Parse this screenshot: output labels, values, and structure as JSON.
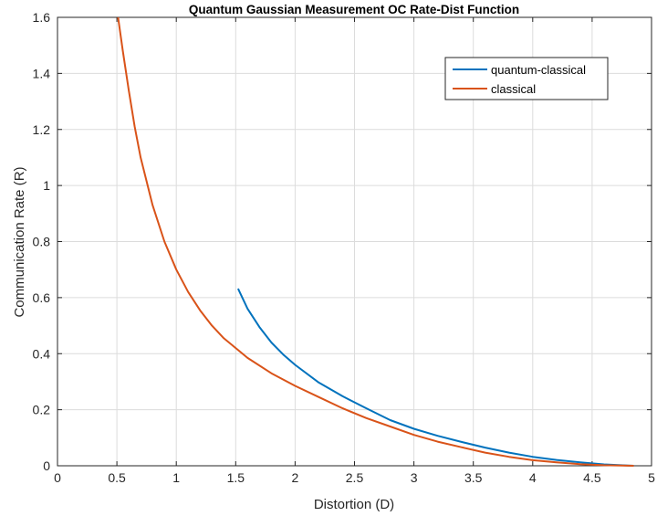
{
  "chart_data": {
    "type": "line",
    "title": "Quantum Gaussian Measurement OC Rate-Dist Function",
    "xlabel": "Distortion (D)",
    "ylabel": "Communication Rate (R)",
    "xlim": [
      0,
      5
    ],
    "ylim": [
      0,
      1.6
    ],
    "xticks": [
      0,
      0.5,
      1,
      1.5,
      2,
      2.5,
      3,
      3.5,
      4,
      4.5,
      5
    ],
    "xtick_labels": [
      "0",
      "0.5",
      "1",
      "1.5",
      "2",
      "2.5",
      "3",
      "3.5",
      "4",
      "4.5",
      "5"
    ],
    "yticks": [
      0,
      0.2,
      0.4,
      0.6,
      0.8,
      1,
      1.2,
      1.4,
      1.6
    ],
    "ytick_labels": [
      "0",
      "0.2",
      "0.4",
      "0.6",
      "0.8",
      "1",
      "1.2",
      "1.4",
      "1.6"
    ],
    "grid": true,
    "legend_position": "top-right",
    "series": [
      {
        "name": "quantum-classical",
        "color": "#0072BD",
        "x": [
          1.52,
          1.6,
          1.7,
          1.8,
          1.9,
          2.0,
          2.2,
          2.4,
          2.6,
          2.8,
          3.0,
          3.2,
          3.4,
          3.6,
          3.8,
          4.0,
          4.2,
          4.4,
          4.6,
          4.8,
          4.85
        ],
        "y": [
          0.632,
          0.56,
          0.495,
          0.44,
          0.397,
          0.36,
          0.297,
          0.248,
          0.205,
          0.163,
          0.132,
          0.107,
          0.085,
          0.065,
          0.047,
          0.032,
          0.021,
          0.012,
          0.005,
          0.001,
          0.0
        ]
      },
      {
        "name": "classical",
        "color": "#D95319",
        "x": [
          0.51,
          0.55,
          0.6,
          0.65,
          0.7,
          0.8,
          0.9,
          1.0,
          1.1,
          1.2,
          1.3,
          1.4,
          1.5,
          1.6,
          1.8,
          2.0,
          2.2,
          2.4,
          2.6,
          2.8,
          3.0,
          3.2,
          3.4,
          3.6,
          3.8,
          4.0,
          4.2,
          4.4,
          4.6,
          4.85
        ],
        "y": [
          1.6,
          1.48,
          1.34,
          1.21,
          1.1,
          0.93,
          0.8,
          0.7,
          0.62,
          0.555,
          0.5,
          0.455,
          0.42,
          0.385,
          0.33,
          0.285,
          0.245,
          0.205,
          0.17,
          0.14,
          0.11,
          0.086,
          0.066,
          0.047,
          0.032,
          0.02,
          0.012,
          0.006,
          0.002,
          0.0
        ]
      }
    ]
  }
}
